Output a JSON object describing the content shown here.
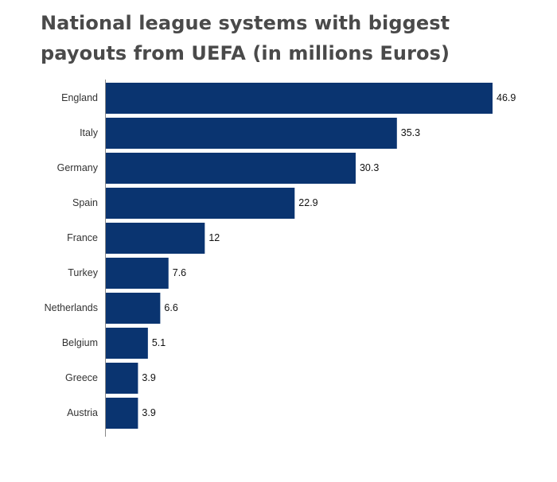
{
  "chart_data": {
    "type": "bar",
    "orientation": "horizontal",
    "title": "National league systems with biggest payouts from UEFA (in millions Euros)",
    "xlabel": "",
    "ylabel": "",
    "categories": [
      "England",
      "Italy",
      "Germany",
      "Spain",
      "France",
      "Turkey",
      "Netherlands",
      "Belgium",
      "Greece",
      "Austria"
    ],
    "values": [
      46.9,
      35.3,
      30.3,
      22.9,
      12,
      7.6,
      6.6,
      5.1,
      3.9,
      3.9
    ],
    "xlim": [
      0,
      46.9
    ],
    "grid": false,
    "legend": "none",
    "data_labels": true,
    "bar_color": "#0a3470",
    "axis_color": "#888888"
  }
}
